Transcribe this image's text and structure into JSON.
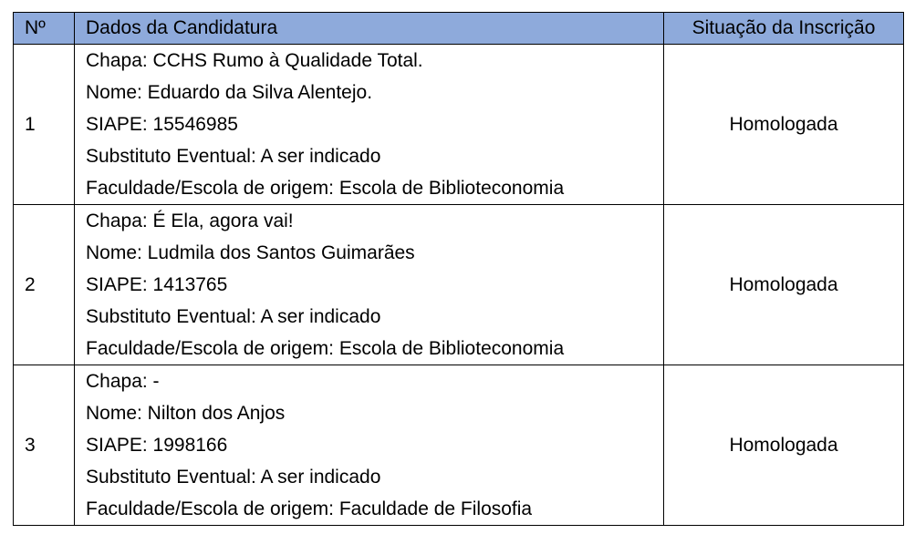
{
  "table": {
    "headers": [
      "Nº",
      "Dados da Candidatura",
      "Situação da Inscrição"
    ],
    "header_color": "#8eaadb",
    "rows": [
      {
        "num": "1",
        "lines": [
          "Chapa: CCHS Rumo à Qualidade Total.",
          "Nome: Eduardo da Silva Alentejo.",
          "SIAPE: 15546985",
          "Substituto Eventual: A ser indicado",
          "Faculdade/Escola de origem: Escola de Biblioteconomia"
        ],
        "status": "Homologada"
      },
      {
        "num": "2",
        "lines": [
          "Chapa: É Ela, agora vai!",
          "Nome: Ludmila dos Santos Guimarães",
          "SIAPE: 1413765",
          "Substituto Eventual: A ser indicado",
          "Faculdade/Escola de origem: Escola de Biblioteconomia"
        ],
        "status": "Homologada"
      },
      {
        "num": "3",
        "lines": [
          "Chapa: -",
          "Nome: Nilton dos Anjos",
          "SIAPE: 1998166",
          "Substituto Eventual: A ser indicado",
          "Faculdade/Escola de origem: Faculdade de Filosofia"
        ],
        "status": "Homologada"
      }
    ]
  }
}
